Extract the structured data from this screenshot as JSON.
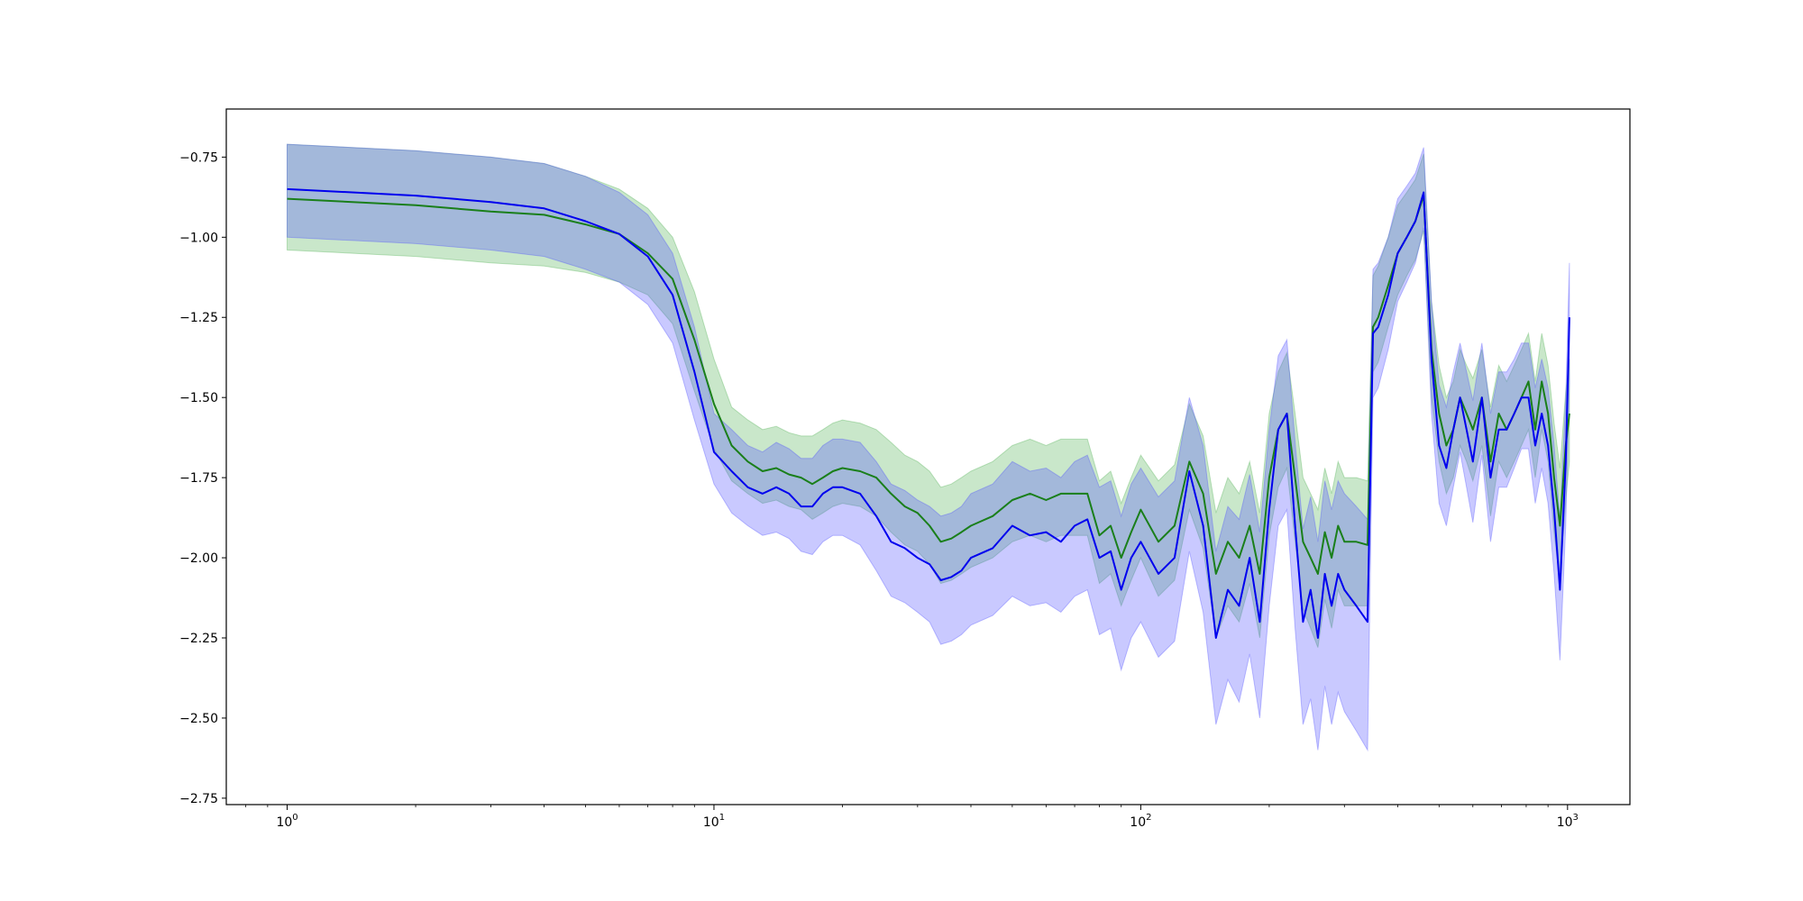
{
  "chart_data": {
    "type": "line",
    "title": "",
    "xlabel": "",
    "ylabel": "",
    "xscale": "log",
    "xlim": [
      0.72,
      1400
    ],
    "ylim": [
      -2.77,
      -0.6
    ],
    "grid": false,
    "legend": "none",
    "y_ticks": [
      {
        "value": -0.75,
        "label": "−0.75"
      },
      {
        "value": -1.0,
        "label": "−1.00"
      },
      {
        "value": -1.25,
        "label": "−1.25"
      },
      {
        "value": -1.5,
        "label": "−1.50"
      },
      {
        "value": -1.75,
        "label": "−1.75"
      },
      {
        "value": -2.0,
        "label": "−2.00"
      },
      {
        "value": -2.25,
        "label": "−2.25"
      },
      {
        "value": -2.5,
        "label": "−2.50"
      },
      {
        "value": -2.75,
        "label": "−2.75"
      }
    ],
    "x_ticks": [
      {
        "value": 1,
        "base": "10",
        "exp": "0"
      },
      {
        "value": 10,
        "base": "10",
        "exp": "1"
      },
      {
        "value": 100,
        "base": "10",
        "exp": "2"
      },
      {
        "value": 1000,
        "base": "10",
        "exp": "3"
      }
    ],
    "series": [
      {
        "color": "#1a7f1a",
        "band_color": "#4caf50",
        "x": [
          1,
          2,
          3,
          4,
          5,
          6,
          7,
          8,
          9,
          10,
          11,
          12,
          13,
          14,
          15,
          16,
          17,
          18,
          19,
          20,
          22,
          24,
          26,
          28,
          30,
          32,
          34,
          36,
          38,
          40,
          45,
          50,
          55,
          60,
          65,
          70,
          75,
          80,
          85,
          90,
          95,
          100,
          110,
          120,
          130,
          140,
          150,
          160,
          170,
          180,
          190,
          200,
          210,
          220,
          230,
          240,
          250,
          260,
          270,
          280,
          290,
          300,
          320,
          340,
          350,
          360,
          380,
          400,
          420,
          440,
          460,
          480,
          500,
          520,
          540,
          560,
          580,
          600,
          630,
          660,
          690,
          720,
          750,
          780,
          810,
          840,
          870,
          900,
          930,
          960,
          990,
          1010
        ],
        "y": [
          -0.88,
          -0.9,
          -0.92,
          -0.93,
          -0.96,
          -0.99,
          -1.05,
          -1.13,
          -1.32,
          -1.52,
          -1.65,
          -1.7,
          -1.73,
          -1.72,
          -1.74,
          -1.75,
          -1.77,
          -1.75,
          -1.73,
          -1.72,
          -1.73,
          -1.75,
          -1.8,
          -1.84,
          -1.86,
          -1.9,
          -1.95,
          -1.94,
          -1.92,
          -1.9,
          -1.87,
          -1.82,
          -1.8,
          -1.82,
          -1.8,
          -1.8,
          -1.8,
          -1.93,
          -1.9,
          -2.0,
          -1.92,
          -1.85,
          -1.95,
          -1.9,
          -1.7,
          -1.8,
          -2.05,
          -1.95,
          -2.0,
          -1.9,
          -2.05,
          -1.75,
          -1.6,
          -1.55,
          -1.75,
          -1.95,
          -2.0,
          -2.05,
          -1.92,
          -2.0,
          -1.9,
          -1.95,
          -1.95,
          -1.96,
          -1.28,
          -1.25,
          -1.15,
          -1.05,
          -1.0,
          -0.95,
          -0.87,
          -1.35,
          -1.55,
          -1.65,
          -1.6,
          -1.5,
          -1.55,
          -1.6,
          -1.5,
          -1.7,
          -1.55,
          -1.6,
          -1.55,
          -1.5,
          -1.45,
          -1.6,
          -1.45,
          -1.55,
          -1.75,
          -1.9,
          -1.65,
          -1.55
        ],
        "lower": [
          -1.04,
          -1.06,
          -1.08,
          -1.09,
          -1.11,
          -1.14,
          -1.18,
          -1.27,
          -1.48,
          -1.66,
          -1.76,
          -1.8,
          -1.83,
          -1.82,
          -1.84,
          -1.85,
          -1.88,
          -1.86,
          -1.84,
          -1.83,
          -1.84,
          -1.87,
          -1.92,
          -1.96,
          -1.98,
          -2.02,
          -2.08,
          -2.07,
          -2.05,
          -2.03,
          -2.0,
          -1.95,
          -1.93,
          -1.95,
          -1.93,
          -1.93,
          -1.93,
          -2.08,
          -2.05,
          -2.15,
          -2.07,
          -2.0,
          -2.12,
          -2.07,
          -1.85,
          -1.97,
          -2.25,
          -2.15,
          -2.2,
          -2.08,
          -2.25,
          -1.93,
          -1.78,
          -1.72,
          -1.95,
          -2.16,
          -2.22,
          -2.28,
          -2.13,
          -2.22,
          -2.1,
          -2.15,
          -2.15,
          -2.15,
          -1.42,
          -1.39,
          -1.28,
          -1.18,
          -1.12,
          -1.07,
          -0.98,
          -1.5,
          -1.7,
          -1.8,
          -1.75,
          -1.65,
          -1.7,
          -1.76,
          -1.65,
          -1.87,
          -1.7,
          -1.75,
          -1.7,
          -1.65,
          -1.6,
          -1.75,
          -1.6,
          -1.7,
          -1.92,
          -2.08,
          -1.82,
          -1.7
        ],
        "upper": [
          -0.71,
          -0.73,
          -0.75,
          -0.77,
          -0.81,
          -0.85,
          -0.91,
          -1.0,
          -1.17,
          -1.38,
          -1.53,
          -1.57,
          -1.6,
          -1.59,
          -1.61,
          -1.62,
          -1.62,
          -1.6,
          -1.58,
          -1.57,
          -1.58,
          -1.6,
          -1.64,
          -1.68,
          -1.7,
          -1.73,
          -1.78,
          -1.77,
          -1.75,
          -1.73,
          -1.7,
          -1.65,
          -1.63,
          -1.65,
          -1.63,
          -1.63,
          -1.63,
          -1.76,
          -1.73,
          -1.83,
          -1.75,
          -1.68,
          -1.76,
          -1.71,
          -1.52,
          -1.62,
          -1.86,
          -1.75,
          -1.8,
          -1.7,
          -1.86,
          -1.55,
          -1.42,
          -1.36,
          -1.55,
          -1.75,
          -1.8,
          -1.85,
          -1.72,
          -1.8,
          -1.7,
          -1.75,
          -1.75,
          -1.76,
          -1.12,
          -1.09,
          -1.0,
          -0.9,
          -0.86,
          -0.82,
          -0.74,
          -1.2,
          -1.4,
          -1.5,
          -1.45,
          -1.35,
          -1.4,
          -1.44,
          -1.35,
          -1.53,
          -1.4,
          -1.45,
          -1.4,
          -1.35,
          -1.3,
          -1.45,
          -1.3,
          -1.4,
          -1.58,
          -1.72,
          -1.48,
          -1.38
        ]
      },
      {
        "color": "#0000ee",
        "band_color": "#4d4dff",
        "x": [
          1,
          2,
          3,
          4,
          5,
          6,
          7,
          8,
          9,
          10,
          11,
          12,
          13,
          14,
          15,
          16,
          17,
          18,
          19,
          20,
          22,
          24,
          26,
          28,
          30,
          32,
          34,
          36,
          38,
          40,
          45,
          50,
          55,
          60,
          65,
          70,
          75,
          80,
          85,
          90,
          95,
          100,
          110,
          120,
          130,
          140,
          150,
          160,
          170,
          180,
          190,
          200,
          210,
          220,
          230,
          240,
          250,
          260,
          270,
          280,
          290,
          300,
          320,
          340,
          350,
          360,
          380,
          400,
          420,
          440,
          460,
          480,
          500,
          520,
          540,
          560,
          580,
          600,
          630,
          660,
          690,
          720,
          750,
          780,
          810,
          840,
          870,
          900,
          930,
          960,
          990,
          1010
        ],
        "y": [
          -0.85,
          -0.87,
          -0.89,
          -0.91,
          -0.95,
          -0.99,
          -1.06,
          -1.18,
          -1.42,
          -1.67,
          -1.73,
          -1.78,
          -1.8,
          -1.78,
          -1.8,
          -1.84,
          -1.84,
          -1.8,
          -1.78,
          -1.78,
          -1.8,
          -1.87,
          -1.95,
          -1.97,
          -2.0,
          -2.02,
          -2.07,
          -2.06,
          -2.04,
          -2.0,
          -1.97,
          -1.9,
          -1.93,
          -1.92,
          -1.95,
          -1.9,
          -1.88,
          -2.0,
          -1.98,
          -2.1,
          -2.0,
          -1.95,
          -2.05,
          -2.0,
          -1.73,
          -1.9,
          -2.25,
          -2.1,
          -2.15,
          -2.0,
          -2.2,
          -1.85,
          -1.6,
          -1.55,
          -1.9,
          -2.2,
          -2.1,
          -2.25,
          -2.05,
          -2.15,
          -2.05,
          -2.1,
          -2.15,
          -2.2,
          -1.3,
          -1.28,
          -1.18,
          -1.05,
          -1.0,
          -0.95,
          -0.86,
          -1.38,
          -1.65,
          -1.72,
          -1.6,
          -1.5,
          -1.6,
          -1.7,
          -1.5,
          -1.75,
          -1.6,
          -1.6,
          -1.55,
          -1.5,
          -1.5,
          -1.65,
          -1.55,
          -1.65,
          -1.85,
          -2.1,
          -1.7,
          -1.25
        ],
        "lower": [
          -1.0,
          -1.02,
          -1.04,
          -1.06,
          -1.1,
          -1.14,
          -1.21,
          -1.33,
          -1.57,
          -1.77,
          -1.86,
          -1.9,
          -1.93,
          -1.92,
          -1.94,
          -1.98,
          -1.99,
          -1.95,
          -1.93,
          -1.93,
          -1.96,
          -2.04,
          -2.12,
          -2.14,
          -2.17,
          -2.2,
          -2.27,
          -2.26,
          -2.24,
          -2.21,
          -2.18,
          -2.12,
          -2.15,
          -2.14,
          -2.17,
          -2.12,
          -2.1,
          -2.24,
          -2.22,
          -2.35,
          -2.25,
          -2.2,
          -2.31,
          -2.26,
          -1.98,
          -2.17,
          -2.52,
          -2.38,
          -2.45,
          -2.3,
          -2.5,
          -2.15,
          -1.9,
          -1.85,
          -2.22,
          -2.52,
          -2.44,
          -2.6,
          -2.4,
          -2.52,
          -2.42,
          -2.48,
          -2.54,
          -2.6,
          -1.5,
          -1.47,
          -1.35,
          -1.2,
          -1.14,
          -1.08,
          -0.97,
          -1.55,
          -1.83,
          -1.9,
          -1.78,
          -1.67,
          -1.78,
          -1.89,
          -1.68,
          -1.95,
          -1.78,
          -1.78,
          -1.72,
          -1.66,
          -1.66,
          -1.83,
          -1.72,
          -1.83,
          -2.05,
          -2.32,
          -1.9,
          -1.45
        ],
        "upper": [
          -0.71,
          -0.73,
          -0.75,
          -0.77,
          -0.81,
          -0.86,
          -0.93,
          -1.05,
          -1.28,
          -1.55,
          -1.6,
          -1.65,
          -1.67,
          -1.64,
          -1.66,
          -1.69,
          -1.69,
          -1.65,
          -1.63,
          -1.63,
          -1.64,
          -1.7,
          -1.77,
          -1.79,
          -1.82,
          -1.84,
          -1.87,
          -1.86,
          -1.84,
          -1.8,
          -1.77,
          -1.7,
          -1.73,
          -1.72,
          -1.75,
          -1.7,
          -1.68,
          -1.78,
          -1.76,
          -1.87,
          -1.77,
          -1.72,
          -1.81,
          -1.76,
          -1.5,
          -1.65,
          -1.98,
          -1.84,
          -1.88,
          -1.74,
          -1.92,
          -1.6,
          -1.37,
          -1.32,
          -1.64,
          -1.91,
          -1.81,
          -1.95,
          -1.76,
          -1.85,
          -1.76,
          -1.8,
          -1.84,
          -1.88,
          -1.1,
          -1.08,
          -1.0,
          -0.88,
          -0.84,
          -0.8,
          -0.72,
          -1.2,
          -1.46,
          -1.53,
          -1.42,
          -1.33,
          -1.42,
          -1.51,
          -1.33,
          -1.55,
          -1.42,
          -1.42,
          -1.38,
          -1.33,
          -1.33,
          -1.47,
          -1.38,
          -1.47,
          -1.65,
          -1.88,
          -1.5,
          -1.08
        ]
      }
    ]
  }
}
